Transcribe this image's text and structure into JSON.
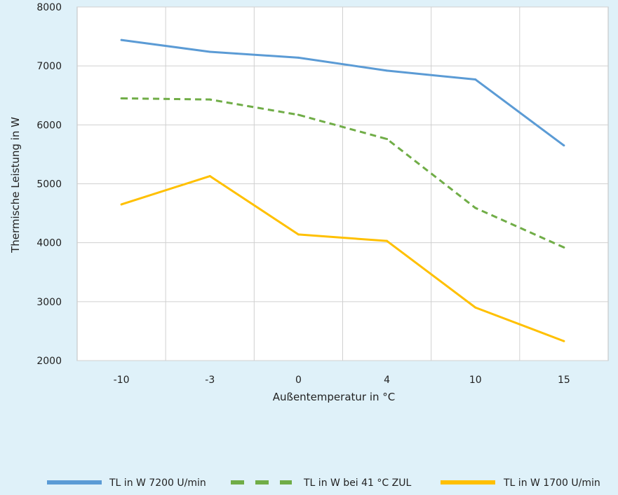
{
  "chart_data": {
    "type": "line",
    "title": "",
    "xlabel": "Außentemperatur in °C",
    "ylabel": "Thermische Leistung in W",
    "categories": [
      "-10",
      "-3",
      "0",
      "4",
      "10",
      "15"
    ],
    "ylim": [
      2000,
      8000
    ],
    "yticks": [
      "2000",
      "3000",
      "4000",
      "5000",
      "6000",
      "7000",
      "8000"
    ],
    "grid": true,
    "legend_position": "bottom",
    "series": [
      {
        "name": "TL in W 7200 U/min",
        "color": "#5b9bd5",
        "dash": "solid",
        "values": [
          7440,
          7240,
          7140,
          6920,
          6770,
          5650
        ]
      },
      {
        "name": "TL in W bei 41 °C ZUL",
        "color": "#70ad47",
        "dash": "dashed",
        "values": [
          6450,
          6430,
          6170,
          5760,
          4590,
          3920
        ]
      },
      {
        "name": "TL in W 1700 U/min",
        "color": "#ffc000",
        "dash": "solid",
        "values": [
          4650,
          5130,
          4140,
          4030,
          2900,
          2330
        ]
      }
    ]
  }
}
